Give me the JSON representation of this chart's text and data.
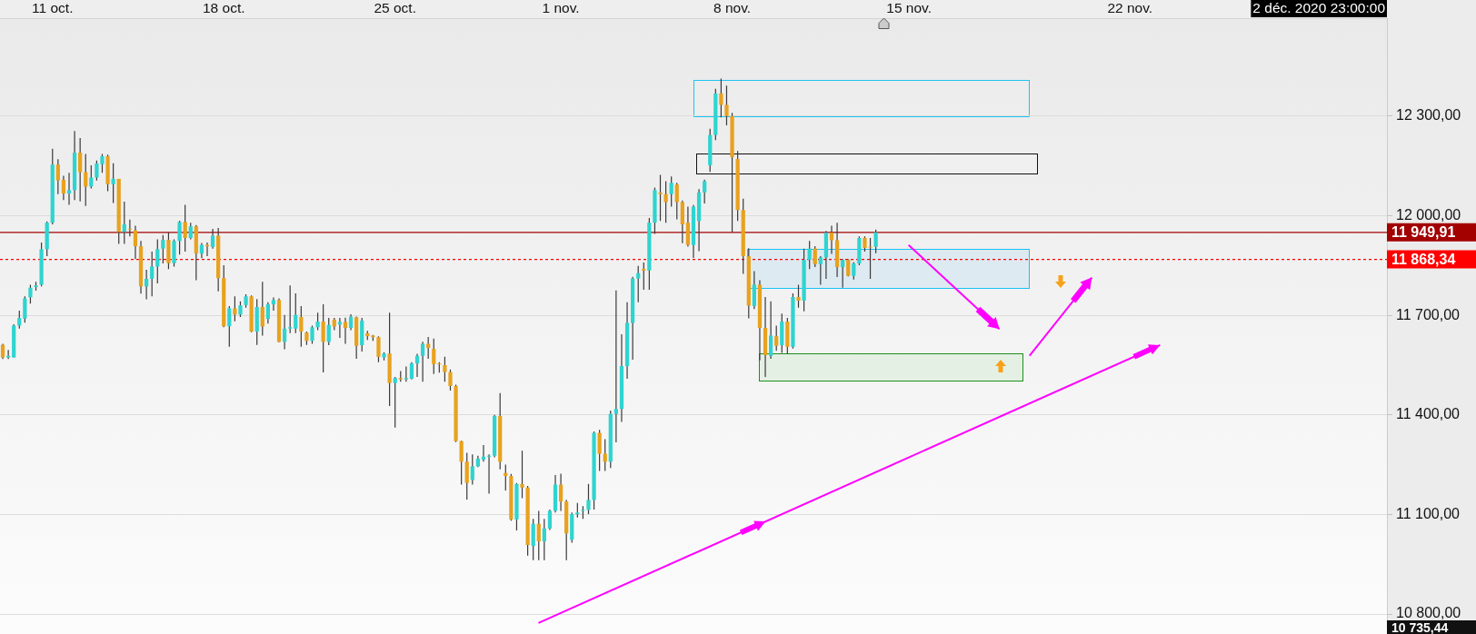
{
  "chart_data": {
    "type": "candlestick",
    "categories": [
      null,
      null,
      null,
      null,
      null,
      null,
      null,
      null,
      null,
      "11 oct.",
      null,
      null,
      null,
      null,
      null,
      null,
      null,
      null,
      null,
      null,
      null,
      null,
      null,
      null,
      null,
      null,
      null,
      null,
      null,
      null,
      null,
      null,
      null,
      null,
      null,
      null,
      null,
      null,
      null,
      null,
      "18 oct.",
      null,
      null,
      null,
      null,
      null,
      null,
      null,
      null,
      null,
      null,
      null,
      null,
      null,
      null,
      null,
      null,
      null,
      null,
      null,
      null,
      null,
      null,
      null,
      null,
      null,
      null,
      null,
      null,
      null,
      null,
      "25 oct.",
      null,
      null,
      null,
      null,
      null,
      null,
      null,
      null,
      null,
      null,
      null,
      null,
      null,
      null,
      null,
      null,
      null,
      null,
      null,
      null,
      null,
      null,
      null,
      null,
      null,
      null,
      null,
      null,
      null,
      "1 nov.",
      null,
      null,
      null,
      null,
      null,
      null,
      null,
      null,
      null,
      null,
      null,
      null,
      null,
      null,
      null,
      null,
      null,
      null,
      null,
      null,
      null,
      null,
      null,
      null,
      null,
      null,
      null,
      null,
      null,
      null,
      "8 nov.",
      null,
      null,
      null,
      null,
      null,
      null,
      null,
      null,
      null,
      null,
      null,
      null,
      null,
      null,
      null,
      null,
      null,
      null,
      null,
      null,
      null,
      null,
      null,
      null,
      null,
      null,
      null,
      null,
      null,
      null,
      null,
      "15 nov.",
      null,
      null,
      null,
      null,
      null,
      null,
      null,
      null,
      null,
      null,
      null,
      null,
      null,
      null,
      null,
      null,
      null,
      null,
      null,
      null,
      null,
      null,
      null,
      null,
      null,
      null,
      null,
      null,
      null,
      null,
      null,
      null,
      null,
      null,
      null,
      null,
      null,
      null,
      null,
      "22 nov.",
      null,
      null,
      null,
      null,
      null,
      null,
      null,
      null,
      null,
      null,
      null,
      null,
      null,
      null,
      null,
      null,
      null,
      null,
      null,
      null,
      null,
      null,
      null,
      null,
      null,
      null,
      null,
      null,
      null,
      null,
      null,
      null,
      null,
      null,
      null,
      null,
      null,
      null,
      null,
      null,
      null,
      null,
      null,
      null,
      null,
      null
    ],
    "ohlc": [
      [
        11611,
        11614,
        11568,
        11573
      ],
      [
        11573,
        11596,
        11568,
        11578
      ],
      [
        11573,
        11673,
        11573,
        11669
      ],
      [
        11669,
        11714,
        11660,
        11692
      ],
      [
        11690,
        11757,
        11678,
        11751
      ],
      [
        11754,
        11792,
        11735,
        11783
      ],
      [
        11785,
        11801,
        11774,
        11790
      ],
      [
        11792,
        11919,
        11787,
        11899
      ],
      [
        11899,
        11983,
        11878,
        11979
      ],
      [
        11979,
        12202,
        11974,
        12154
      ],
      [
        12154,
        12170,
        12065,
        12106
      ],
      [
        12108,
        12120,
        12047,
        12067
      ],
      [
        12067,
        12129,
        12033,
        12077
      ],
      [
        12077,
        12255,
        12047,
        12190
      ],
      [
        12190,
        12234,
        12043,
        12131
      ],
      [
        12131,
        12186,
        12029,
        12088
      ],
      [
        12088,
        12152,
        12082,
        12115
      ],
      [
        12115,
        12166,
        12106,
        12157
      ],
      [
        12155,
        12186,
        12129,
        12179
      ],
      [
        12179,
        12184,
        12074,
        12095
      ],
      [
        12095,
        12158,
        12038,
        12111
      ],
      [
        12111,
        12111,
        11915,
        11951
      ],
      [
        11951,
        12042,
        11915,
        11974
      ],
      [
        11960,
        11988,
        11938,
        11958
      ],
      [
        11956,
        11970,
        11869,
        11908
      ],
      [
        11908,
        11924,
        11765,
        11787
      ],
      [
        11787,
        11837,
        11748,
        11810
      ],
      [
        11810,
        11892,
        11757,
        11847
      ],
      [
        11847,
        11929,
        11796,
        11899
      ],
      [
        11901,
        11942,
        11856,
        11927
      ],
      [
        11927,
        11949,
        11839,
        11857
      ],
      [
        11857,
        11929,
        11847,
        11924
      ],
      [
        11924,
        11985,
        11883,
        11981
      ],
      [
        11981,
        12033,
        11892,
        11933
      ],
      [
        11933,
        11979,
        11929,
        11968
      ],
      [
        11968,
        11972,
        11806,
        11886
      ],
      [
        11886,
        11918,
        11872,
        11912
      ],
      [
        11912,
        11919,
        11878,
        11908
      ],
      [
        11906,
        11960,
        11901,
        11940
      ],
      [
        11940,
        11963,
        11772,
        11812
      ],
      [
        11812,
        11851,
        11664,
        11667
      ],
      [
        11667,
        11728,
        11605,
        11721
      ],
      [
        11721,
        11757,
        11682,
        11702
      ],
      [
        11702,
        11742,
        11695,
        11730
      ],
      [
        11731,
        11763,
        11723,
        11757
      ],
      [
        11757,
        11760,
        11649,
        11651
      ],
      [
        11651,
        11749,
        11611,
        11725
      ],
      [
        11725,
        11801,
        11639,
        11666
      ],
      [
        11689,
        11739,
        11675,
        11733
      ],
      [
        11733,
        11754,
        11714,
        11746
      ],
      [
        11746,
        11751,
        11619,
        11620
      ],
      [
        11620,
        11701,
        11598,
        11660
      ],
      [
        11660,
        11790,
        11646,
        11664
      ],
      [
        11660,
        11766,
        11646,
        11701
      ],
      [
        11695,
        11728,
        11605,
        11651
      ],
      [
        11648,
        11651,
        11611,
        11623
      ],
      [
        11623,
        11669,
        11614,
        11664
      ],
      [
        11664,
        11708,
        11655,
        11681
      ],
      [
        11681,
        11733,
        11528,
        11620
      ],
      [
        11620,
        11692,
        11610,
        11671
      ],
      [
        11687,
        11692,
        11655,
        11666
      ],
      [
        11672,
        11692,
        11632,
        11680
      ],
      [
        11680,
        11693,
        11614,
        11662
      ],
      [
        11662,
        11703,
        11655,
        11696
      ],
      [
        11694,
        11696,
        11569,
        11608
      ],
      [
        11610,
        11692,
        11591,
        11684
      ],
      [
        11646,
        11653,
        11626,
        11637
      ],
      [
        11639,
        11641,
        11623,
        11634
      ],
      [
        11634,
        11637,
        11559,
        11575
      ],
      [
        11573,
        11589,
        11564,
        11585
      ],
      [
        11585,
        11708,
        11427,
        11496
      ],
      [
        11496,
        11514,
        11362,
        11511
      ],
      [
        11511,
        11532,
        11500,
        11507
      ],
      [
        11507,
        11546,
        11500,
        11511
      ],
      [
        11509,
        11559,
        11507,
        11555
      ],
      [
        11555,
        11584,
        11514,
        11578
      ],
      [
        11578,
        11620,
        11500,
        11614
      ],
      [
        11614,
        11635,
        11569,
        11602
      ],
      [
        11599,
        11630,
        11523,
        11553
      ],
      [
        11553,
        11559,
        11527,
        11552
      ],
      [
        11550,
        11575,
        11500,
        11529
      ],
      [
        11529,
        11537,
        11473,
        11487
      ],
      [
        11487,
        11491,
        11318,
        11321
      ],
      [
        11321,
        11322,
        11190,
        11259
      ],
      [
        11259,
        11286,
        11145,
        11195
      ],
      [
        11204,
        11281,
        11190,
        11245
      ],
      [
        11245,
        11277,
        11243,
        11268
      ],
      [
        11265,
        11309,
        11259,
        11274
      ],
      [
        11274,
        11281,
        11163,
        11277
      ],
      [
        11277,
        11400,
        11272,
        11397
      ],
      [
        11397,
        11466,
        11236,
        11259
      ],
      [
        11225,
        11250,
        11172,
        11216
      ],
      [
        11216,
        11222,
        11081,
        11085
      ],
      [
        11085,
        11195,
        11052,
        11192
      ],
      [
        11192,
        11292,
        11149,
        11181
      ],
      [
        11181,
        11186,
        10976,
        11008
      ],
      [
        11005,
        11087,
        10962,
        11072
      ],
      [
        11072,
        11111,
        10962,
        11019
      ],
      [
        11019,
        11087,
        10962,
        11058
      ],
      [
        11058,
        11115,
        11053,
        11111
      ],
      [
        11111,
        11219,
        11106,
        11190
      ],
      [
        11190,
        11223,
        11111,
        11139
      ],
      [
        11139,
        11144,
        10962,
        11043
      ],
      [
        11024,
        11106,
        11015,
        11101
      ],
      [
        11101,
        11135,
        11091,
        11106
      ],
      [
        11111,
        11125,
        11087,
        11114
      ],
      [
        11114,
        11192,
        11101,
        11144
      ],
      [
        11144,
        11350,
        11115,
        11346
      ],
      [
        11346,
        11355,
        11231,
        11283
      ],
      [
        11283,
        11327,
        11231,
        11259
      ],
      [
        11259,
        11413,
        11240,
        11403
      ],
      [
        11403,
        11775,
        11317,
        11418
      ],
      [
        11418,
        11643,
        11379,
        11547
      ],
      [
        11547,
        11739,
        11509,
        11677
      ],
      [
        11677,
        11816,
        11566,
        11811
      ],
      [
        11811,
        11849,
        11739,
        11827
      ],
      [
        11840,
        11859,
        11777,
        11835
      ],
      [
        11835,
        11993,
        11777,
        11979
      ],
      [
        11979,
        12085,
        11945,
        12077
      ],
      [
        12070,
        12123,
        11984,
        12065
      ],
      [
        12065,
        12104,
        11979,
        12041
      ],
      [
        12065,
        12118,
        12027,
        12099
      ],
      [
        12094,
        12099,
        11989,
        12041
      ],
      [
        12041,
        12046,
        11917,
        11974
      ],
      [
        11979,
        12027,
        11907,
        11912
      ],
      [
        11912,
        12032,
        11873,
        12027
      ],
      [
        11984,
        12080,
        11893,
        12070
      ],
      [
        12070,
        12109,
        12037,
        12104
      ],
      [
        12152,
        12262,
        12132,
        12243
      ],
      [
        12243,
        12382,
        12228,
        12368
      ],
      [
        12368,
        12413,
        12296,
        12334
      ],
      [
        12334,
        12392,
        12272,
        12300
      ],
      [
        12300,
        12310,
        11950,
        12176
      ],
      [
        12171,
        12195,
        11984,
        12017
      ],
      [
        12017,
        12051,
        11825,
        11878
      ],
      [
        11878,
        11902,
        11691,
        11729
      ],
      [
        11728,
        11833,
        11719,
        11792
      ],
      [
        11792,
        11806,
        11564,
        11662
      ],
      [
        11662,
        11755,
        11514,
        11580
      ],
      [
        11578,
        11742,
        11569,
        11639
      ],
      [
        11637,
        11669,
        11593,
        11608
      ],
      [
        11610,
        11705,
        11587,
        11681
      ],
      [
        11681,
        11692,
        11584,
        11605
      ],
      [
        11605,
        11766,
        11600,
        11755
      ],
      [
        11755,
        11792,
        11723,
        11744
      ],
      [
        11744,
        11901,
        11712,
        11867
      ],
      [
        11867,
        11924,
        11839,
        11901
      ],
      [
        11901,
        11908,
        11845,
        11854
      ],
      [
        11854,
        11878,
        11792,
        11874
      ],
      [
        11874,
        11954,
        11810,
        11949
      ],
      [
        11949,
        11970,
        11885,
        11926
      ],
      [
        11926,
        11979,
        11815,
        11845
      ],
      [
        11845,
        11869,
        11783,
        11867
      ],
      [
        11867,
        11869,
        11817,
        11819
      ],
      [
        11819,
        11860,
        11808,
        11856
      ],
      [
        11856,
        11938,
        11851,
        11933
      ],
      [
        11933,
        11938,
        11892,
        11903
      ],
      [
        11906,
        11933,
        11810,
        11904
      ],
      [
        11906,
        11958,
        11887,
        11950
      ],
      null,
      null,
      null,
      null,
      null,
      null,
      null,
      null,
      null,
      null,
      null,
      null,
      null,
      null,
      null,
      null,
      null,
      null,
      null,
      null,
      null,
      null,
      null,
      null,
      null,
      null,
      null,
      null,
      null,
      null,
      null,
      null,
      null,
      null,
      null,
      null,
      null,
      null,
      null,
      null,
      null,
      null,
      null,
      null,
      null,
      null,
      null,
      null,
      null,
      null,
      null,
      null,
      null,
      null,
      null,
      null,
      null,
      null,
      null,
      null,
      null,
      null,
      null,
      null,
      null,
      null,
      null,
      null,
      null,
      null,
      null,
      null,
      null,
      null,
      null,
      null,
      null,
      null,
      null,
      null,
      null,
      null,
      null,
      null,
      null,
      null,
      null,
      null,
      null,
      null,
      null,
      null
    ],
    "colors": [
      "#e8a21e",
      "#2fd4d0",
      "#2fd4d0",
      "#2fd4d0",
      "#2fd4d0",
      "#2fd4d0",
      "#2fd4d0",
      "#2fd4d0",
      "#2fd4d0",
      "#2fd4d0",
      "#e8a21e",
      "#e8a21e",
      "#2fd4d0",
      "#2fd4d0",
      "#e8a21e",
      "#e8a21e",
      "#2fd4d0",
      "#2fd4d0",
      "#2fd4d0",
      "#e8a21e",
      "#2fd4d0",
      "#e8a21e",
      "#2fd4d0",
      "#e8a21e",
      "#e8a21e",
      "#e8a21e",
      "#2fd4d0",
      "#2fd4d0",
      "#2fd4d0",
      "#2fd4d0",
      "#e8a21e",
      "#2fd4d0",
      "#2fd4d0",
      "#e8a21e",
      "#2fd4d0",
      "#e8a21e",
      "#2fd4d0",
      "#e8a21e",
      "#2fd4d0",
      "#e8a21e",
      "#e8a21e",
      "#2fd4d0",
      "#e8a21e",
      "#2fd4d0",
      "#2fd4d0",
      "#e8a21e",
      "#2fd4d0",
      "#e8a21e",
      "#2fd4d0",
      "#2fd4d0",
      "#e8a21e",
      "#2fd4d0",
      "#2fd4d0",
      "#2fd4d0",
      "#e8a21e",
      "#e8a21e",
      "#2fd4d0",
      "#2fd4d0",
      "#e8a21e",
      "#2fd4d0",
      "#e8a21e",
      "#2fd4d0",
      "#e8a21e",
      "#2fd4d0",
      "#e8a21e",
      "#2fd4d0",
      "#e8a21e",
      "#e8a21e",
      "#e8a21e",
      "#2fd4d0",
      "#e8a21e",
      "#2fd4d0",
      "#e8a21e",
      "#2fd4d0",
      "#2fd4d0",
      "#2fd4d0",
      "#2fd4d0",
      "#e8a21e",
      "#e8a21e",
      "#e8a21e",
      "#e8a21e",
      "#e8a21e",
      "#e8a21e",
      "#e8a21e",
      "#e8a21e",
      "#2fd4d0",
      "#2fd4d0",
      "#2fd4d0",
      "#2fd4d0",
      "#2fd4d0",
      "#e8a21e",
      "#e8a21e",
      "#e8a21e",
      "#2fd4d0",
      "#e8a21e",
      "#e8a21e",
      "#2fd4d0",
      "#e8a21e",
      "#2fd4d0",
      "#2fd4d0",
      "#2fd4d0",
      "#e8a21e",
      "#e8a21e",
      "#2fd4d0",
      "#2fd4d0",
      "#2fd4d0",
      "#2fd4d0",
      "#2fd4d0",
      "#e8a21e",
      "#e8a21e",
      "#2fd4d0",
      "#2fd4d0",
      "#2fd4d0",
      "#2fd4d0",
      "#2fd4d0",
      "#2fd4d0",
      "#e8a21e",
      "#2fd4d0",
      "#2fd4d0",
      "#e8a21e",
      "#e8a21e",
      "#2fd4d0",
      "#e8a21e",
      "#e8a21e",
      "#e8a21e",
      "#2fd4d0",
      "#2fd4d0",
      "#2fd4d0",
      "#2fd4d0",
      "#2fd4d0",
      "#e8a21e",
      "#e8a21e",
      "#e8a21e",
      "#e8a21e",
      "#e8a21e",
      "#e8a21e",
      "#2fd4d0",
      "#e8a21e",
      "#e8a21e",
      "#2fd4d0",
      "#e8a21e",
      "#2fd4d0",
      "#e8a21e",
      "#2fd4d0",
      "#e8a21e",
      "#2fd4d0",
      "#2fd4d0",
      "#e8a21e",
      "#2fd4d0",
      "#2fd4d0",
      "#e8a21e",
      "#e8a21e",
      "#2fd4d0",
      "#e8a21e",
      "#2fd4d0",
      "#2fd4d0",
      "#e8a21e",
      "#e8a21e",
      "#2fd4d0",
      null,
      null,
      null,
      null,
      null,
      null,
      null,
      null,
      null,
      null,
      null,
      null,
      null,
      null,
      null,
      null,
      null,
      null,
      null,
      null,
      null,
      null,
      null,
      null,
      null,
      null,
      null,
      null,
      null,
      null,
      null,
      null,
      null,
      null,
      null,
      null,
      null,
      null,
      null,
      null,
      null,
      null,
      null,
      null,
      null,
      null,
      null,
      null,
      null,
      null,
      null,
      null,
      null,
      null,
      null,
      null,
      null,
      null,
      null,
      null,
      null,
      null,
      null,
      null,
      null,
      null,
      null,
      null,
      null,
      null,
      null,
      null,
      null,
      null,
      null,
      null,
      null,
      null,
      null,
      null,
      null,
      null,
      null,
      null,
      null,
      null,
      null,
      null,
      null,
      null,
      null,
      null
    ],
    "ylim": [
      10740,
      12595
    ],
    "yticks": [
      {
        "value": 10800,
        "label": "10 800,00"
      },
      {
        "value": 11100,
        "label": "11 100,00"
      },
      {
        "value": 11400,
        "label": "11 400,00"
      },
      {
        "value": 11700,
        "label": "11 700,00"
      },
      {
        "value": 12000,
        "label": "12 000,00"
      },
      {
        "value": 12300,
        "label": "12 300,00"
      }
    ],
    "grid": "y",
    "ref_lines": [
      {
        "axis": "y",
        "value": 11949.91,
        "label": "11 949,91",
        "color": "#a30000",
        "line_style": "solid"
      },
      {
        "axis": "y",
        "value": 11868.34,
        "label": "11 868,34",
        "color": "#ff0000",
        "line_style": "dotted"
      }
    ],
    "annotations": [
      "2 déc. 2020 23:00:00",
      "10 735,44"
    ]
  }
}
